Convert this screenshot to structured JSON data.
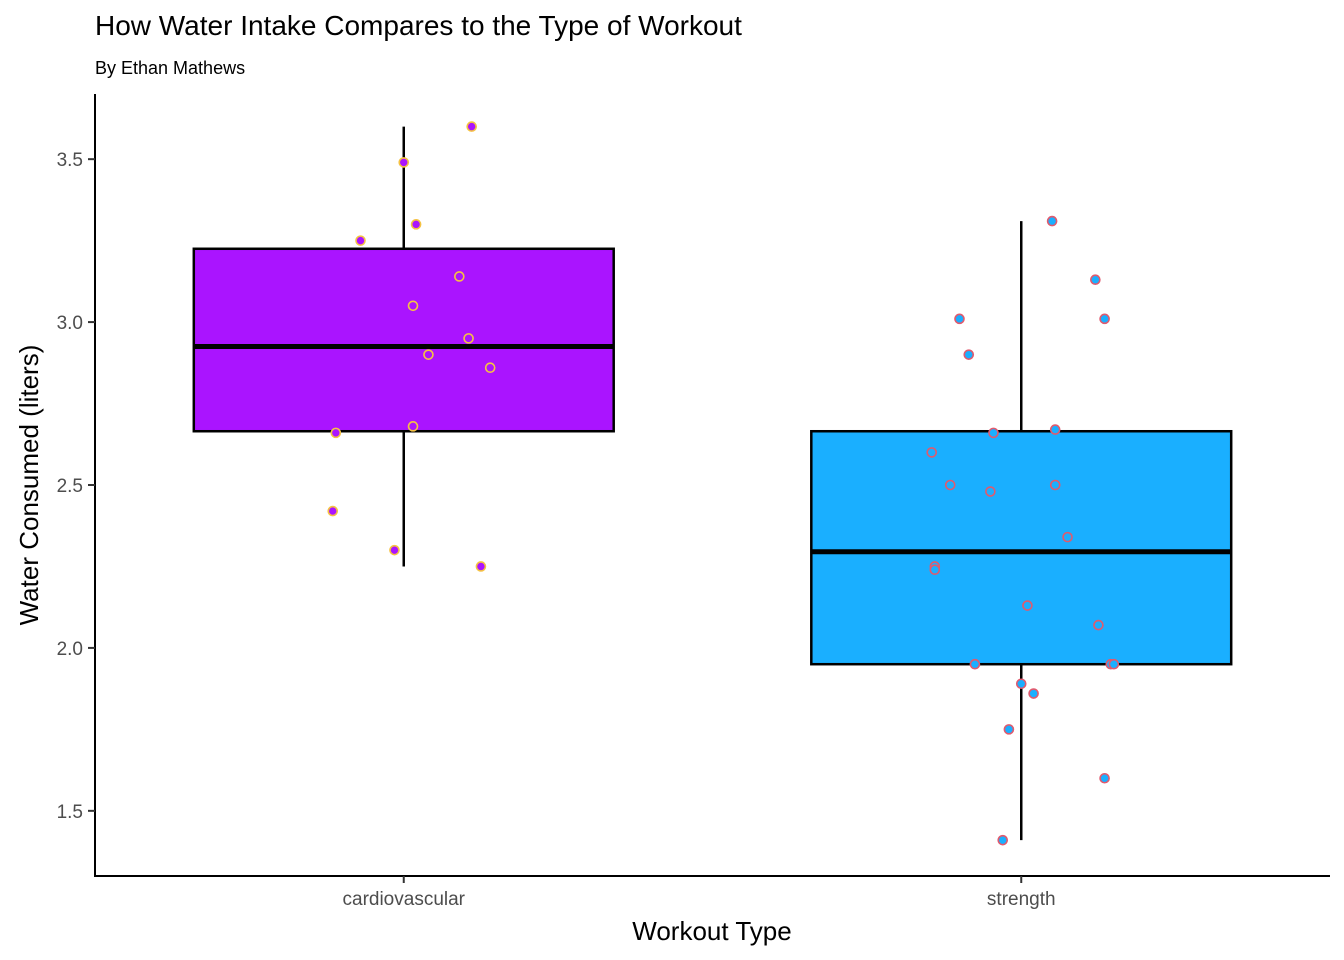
{
  "chart_data": {
    "type": "box",
    "title": "How Water Intake Compares to the Type of Workout",
    "subtitle": "By Ethan Mathews",
    "xlabel": "Workout Type",
    "ylabel": "Water Consumed (liters)",
    "categories": [
      "cardiovascular",
      "strength"
    ],
    "ylim": [
      1.3,
      3.7
    ],
    "yticks": [
      1.5,
      2.0,
      2.5,
      3.0,
      3.5
    ],
    "ytick_labels": [
      "1.5",
      "2.0",
      "2.5",
      "3.0",
      "3.5"
    ],
    "grid": false,
    "boxes": [
      {
        "category": "cardiovascular",
        "whisker_low": 2.25,
        "q1": 2.665,
        "median": 2.925,
        "q3": 3.225,
        "whisker_high": 3.6,
        "fill": "#aa14ff",
        "point_fill": "#aa14ff",
        "point_stroke": "#f5c242",
        "points": [
          {
            "j": 0.22,
            "y": 3.6
          },
          {
            "j": 0.0,
            "y": 3.49
          },
          {
            "j": 0.04,
            "y": 3.3
          },
          {
            "j": -0.14,
            "y": 3.25
          },
          {
            "j": 0.18,
            "y": 3.14
          },
          {
            "j": 0.03,
            "y": 3.05
          },
          {
            "j": 0.21,
            "y": 2.95
          },
          {
            "j": 0.08,
            "y": 2.9
          },
          {
            "j": 0.28,
            "y": 2.86
          },
          {
            "j": 0.03,
            "y": 2.68
          },
          {
            "j": -0.22,
            "y": 2.66
          },
          {
            "j": -0.23,
            "y": 2.42
          },
          {
            "j": -0.03,
            "y": 2.3
          },
          {
            "j": 0.25,
            "y": 2.25
          }
        ]
      },
      {
        "category": "strength",
        "whisker_low": 1.41,
        "q1": 1.95,
        "median": 2.295,
        "q3": 2.665,
        "whisker_high": 3.31,
        "fill": "#1aafff",
        "point_fill": "#1aafff",
        "point_stroke": "#e05a6e",
        "points": [
          {
            "j": 0.1,
            "y": 3.31
          },
          {
            "j": 0.24,
            "y": 3.13
          },
          {
            "j": -0.2,
            "y": 3.01
          },
          {
            "j": 0.27,
            "y": 3.01
          },
          {
            "j": -0.17,
            "y": 2.9
          },
          {
            "j": 0.11,
            "y": 2.67
          },
          {
            "j": -0.09,
            "y": 2.66
          },
          {
            "j": -0.29,
            "y": 2.6
          },
          {
            "j": -0.23,
            "y": 2.5
          },
          {
            "j": 0.11,
            "y": 2.5
          },
          {
            "j": -0.1,
            "y": 2.48
          },
          {
            "j": 0.15,
            "y": 2.34
          },
          {
            "j": -0.28,
            "y": 2.25
          },
          {
            "j": -0.28,
            "y": 2.24
          },
          {
            "j": 0.02,
            "y": 2.13
          },
          {
            "j": 0.25,
            "y": 2.07
          },
          {
            "j": -0.15,
            "y": 1.95
          },
          {
            "j": 0.29,
            "y": 1.95
          },
          {
            "j": 0.3,
            "y": 1.95
          },
          {
            "j": 0.0,
            "y": 1.89
          },
          {
            "j": 0.04,
            "y": 1.86
          },
          {
            "j": -0.04,
            "y": 1.75
          },
          {
            "j": 0.27,
            "y": 1.6
          },
          {
            "j": -0.06,
            "y": 1.41
          }
        ]
      }
    ]
  }
}
